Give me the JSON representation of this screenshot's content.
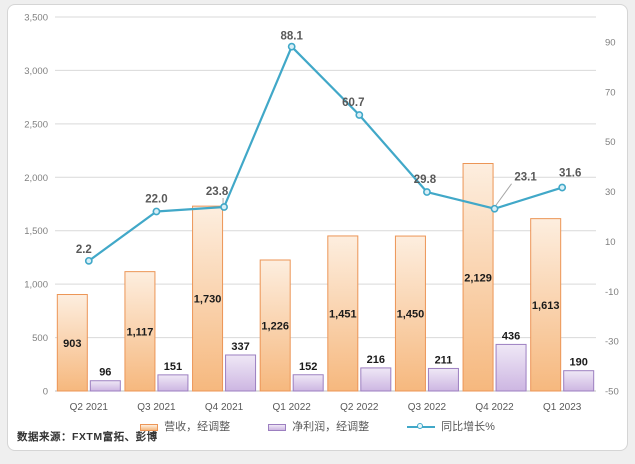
{
  "footer": {
    "source": "数据来源：FXTM富拓、彭博"
  },
  "colors": {
    "grid": "#D9D9D9",
    "axis_line": "#BFBFBF",
    "tick_text": "#7F7F7F",
    "category_text": "#595959",
    "bar_label": "#1A1A1A",
    "line_label": "#595959",
    "leader": "#A6A6A6",
    "card_border": "#D5D5D5",
    "card_bg": "#FFFFFF"
  },
  "chart_data": {
    "type": "combo_bar_line",
    "title": "",
    "categories": [
      "Q2 2021",
      "Q3 2021",
      "Q4 2021",
      "Q1 2022",
      "Q2 2022",
      "Q3 2022",
      "Q4 2022",
      "Q1 2023"
    ],
    "series": [
      {
        "name": "营收，经调整",
        "type": "bar",
        "axis": "left",
        "values": [
          903,
          1117,
          1730,
          1226,
          1451,
          1450,
          2129,
          1613
        ],
        "labels": [
          "903",
          "1,117",
          "1,730",
          "1,226",
          "1,451",
          "1,450",
          "2,129",
          "1,613"
        ],
        "colors": {
          "fill_top": "#FDEEDF",
          "fill_bottom": "#F6B87E",
          "border": "#EC9556"
        }
      },
      {
        "name": "净利润，经调整",
        "type": "bar",
        "axis": "left",
        "values": [
          96,
          151,
          337,
          152,
          216,
          211,
          436,
          190
        ],
        "labels": [
          "96",
          "151",
          "337",
          "152",
          "216",
          "211",
          "436",
          "190"
        ],
        "colors": {
          "fill_top": "#EFE8F6",
          "fill_bottom": "#CDB6E2",
          "border": "#9C7FC0"
        }
      },
      {
        "name": "同比增长%",
        "type": "line",
        "axis": "right",
        "values": [
          2.2,
          22.0,
          23.8,
          88.1,
          60.7,
          29.8,
          23.1,
          31.6
        ],
        "labels": [
          "2.2",
          "22.0",
          "23.8",
          "88.1",
          "60.7",
          "29.8",
          "23.1",
          "31.6"
        ],
        "colors": {
          "line": "#41A8C8",
          "marker_fill": "#D9EFF7"
        },
        "label_offsets": [
          [
            -5,
            1
          ],
          [
            0,
            0
          ],
          [
            -7,
            -3
          ],
          [
            0,
            2
          ],
          [
            -6,
            0
          ],
          [
            -2,
            0
          ],
          [
            31,
            -19
          ],
          [
            8,
            -2
          ]
        ],
        "label_leaders": [
          false,
          false,
          true,
          false,
          false,
          false,
          true,
          false
        ]
      }
    ],
    "left_axis": {
      "min": 0,
      "max": 3500,
      "step": 500,
      "tick_labels": [
        "3,500",
        "3,000",
        "2,500",
        "2,000",
        "1,500",
        "1,000",
        "500",
        "0"
      ]
    },
    "right_axis": {
      "min": -50,
      "max": 100,
      "step": 20,
      "tick_values": [
        90,
        70,
        50,
        30,
        10,
        -10,
        -30,
        -50
      ],
      "tick_labels": [
        "90",
        "70",
        "50",
        "30",
        "10",
        "-10",
        "-30",
        "-50"
      ]
    },
    "grid": true,
    "legend_position": "bottom"
  }
}
